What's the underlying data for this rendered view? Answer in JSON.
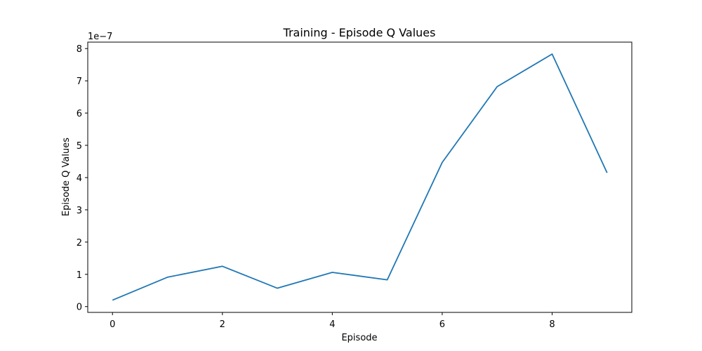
{
  "chart_data": {
    "type": "line",
    "title": "Training - Episode Q Values",
    "xlabel": "Episode",
    "ylabel": "Episode Q Values",
    "y_offset_label": "1e−7",
    "x": [
      0,
      1,
      2,
      3,
      4,
      5,
      6,
      7,
      8,
      9
    ],
    "series": [
      {
        "values": [
          2e-08,
          9.1e-08,
          1.25e-07,
          5.7e-08,
          1.06e-07,
          8.3e-08,
          4.47e-07,
          6.82e-07,
          7.83e-07,
          4.15e-07
        ],
        "color": "#1f77b4"
      }
    ],
    "xlim": [
      -0.45,
      9.45
    ],
    "ylim": [
      -1.8e-08,
      8.2e-07
    ],
    "x_ticks": [
      0,
      2,
      4,
      6,
      8
    ],
    "x_tick_labels": [
      "0",
      "2",
      "4",
      "6",
      "8"
    ],
    "y_ticks": [
      0,
      1e-07,
      2e-07,
      3e-07,
      4e-07,
      5e-07,
      6e-07,
      7e-07,
      8e-07
    ],
    "y_tick_labels": [
      "0",
      "1",
      "2",
      "3",
      "4",
      "5",
      "6",
      "7",
      "8"
    ],
    "grid": false,
    "legend": false
  }
}
